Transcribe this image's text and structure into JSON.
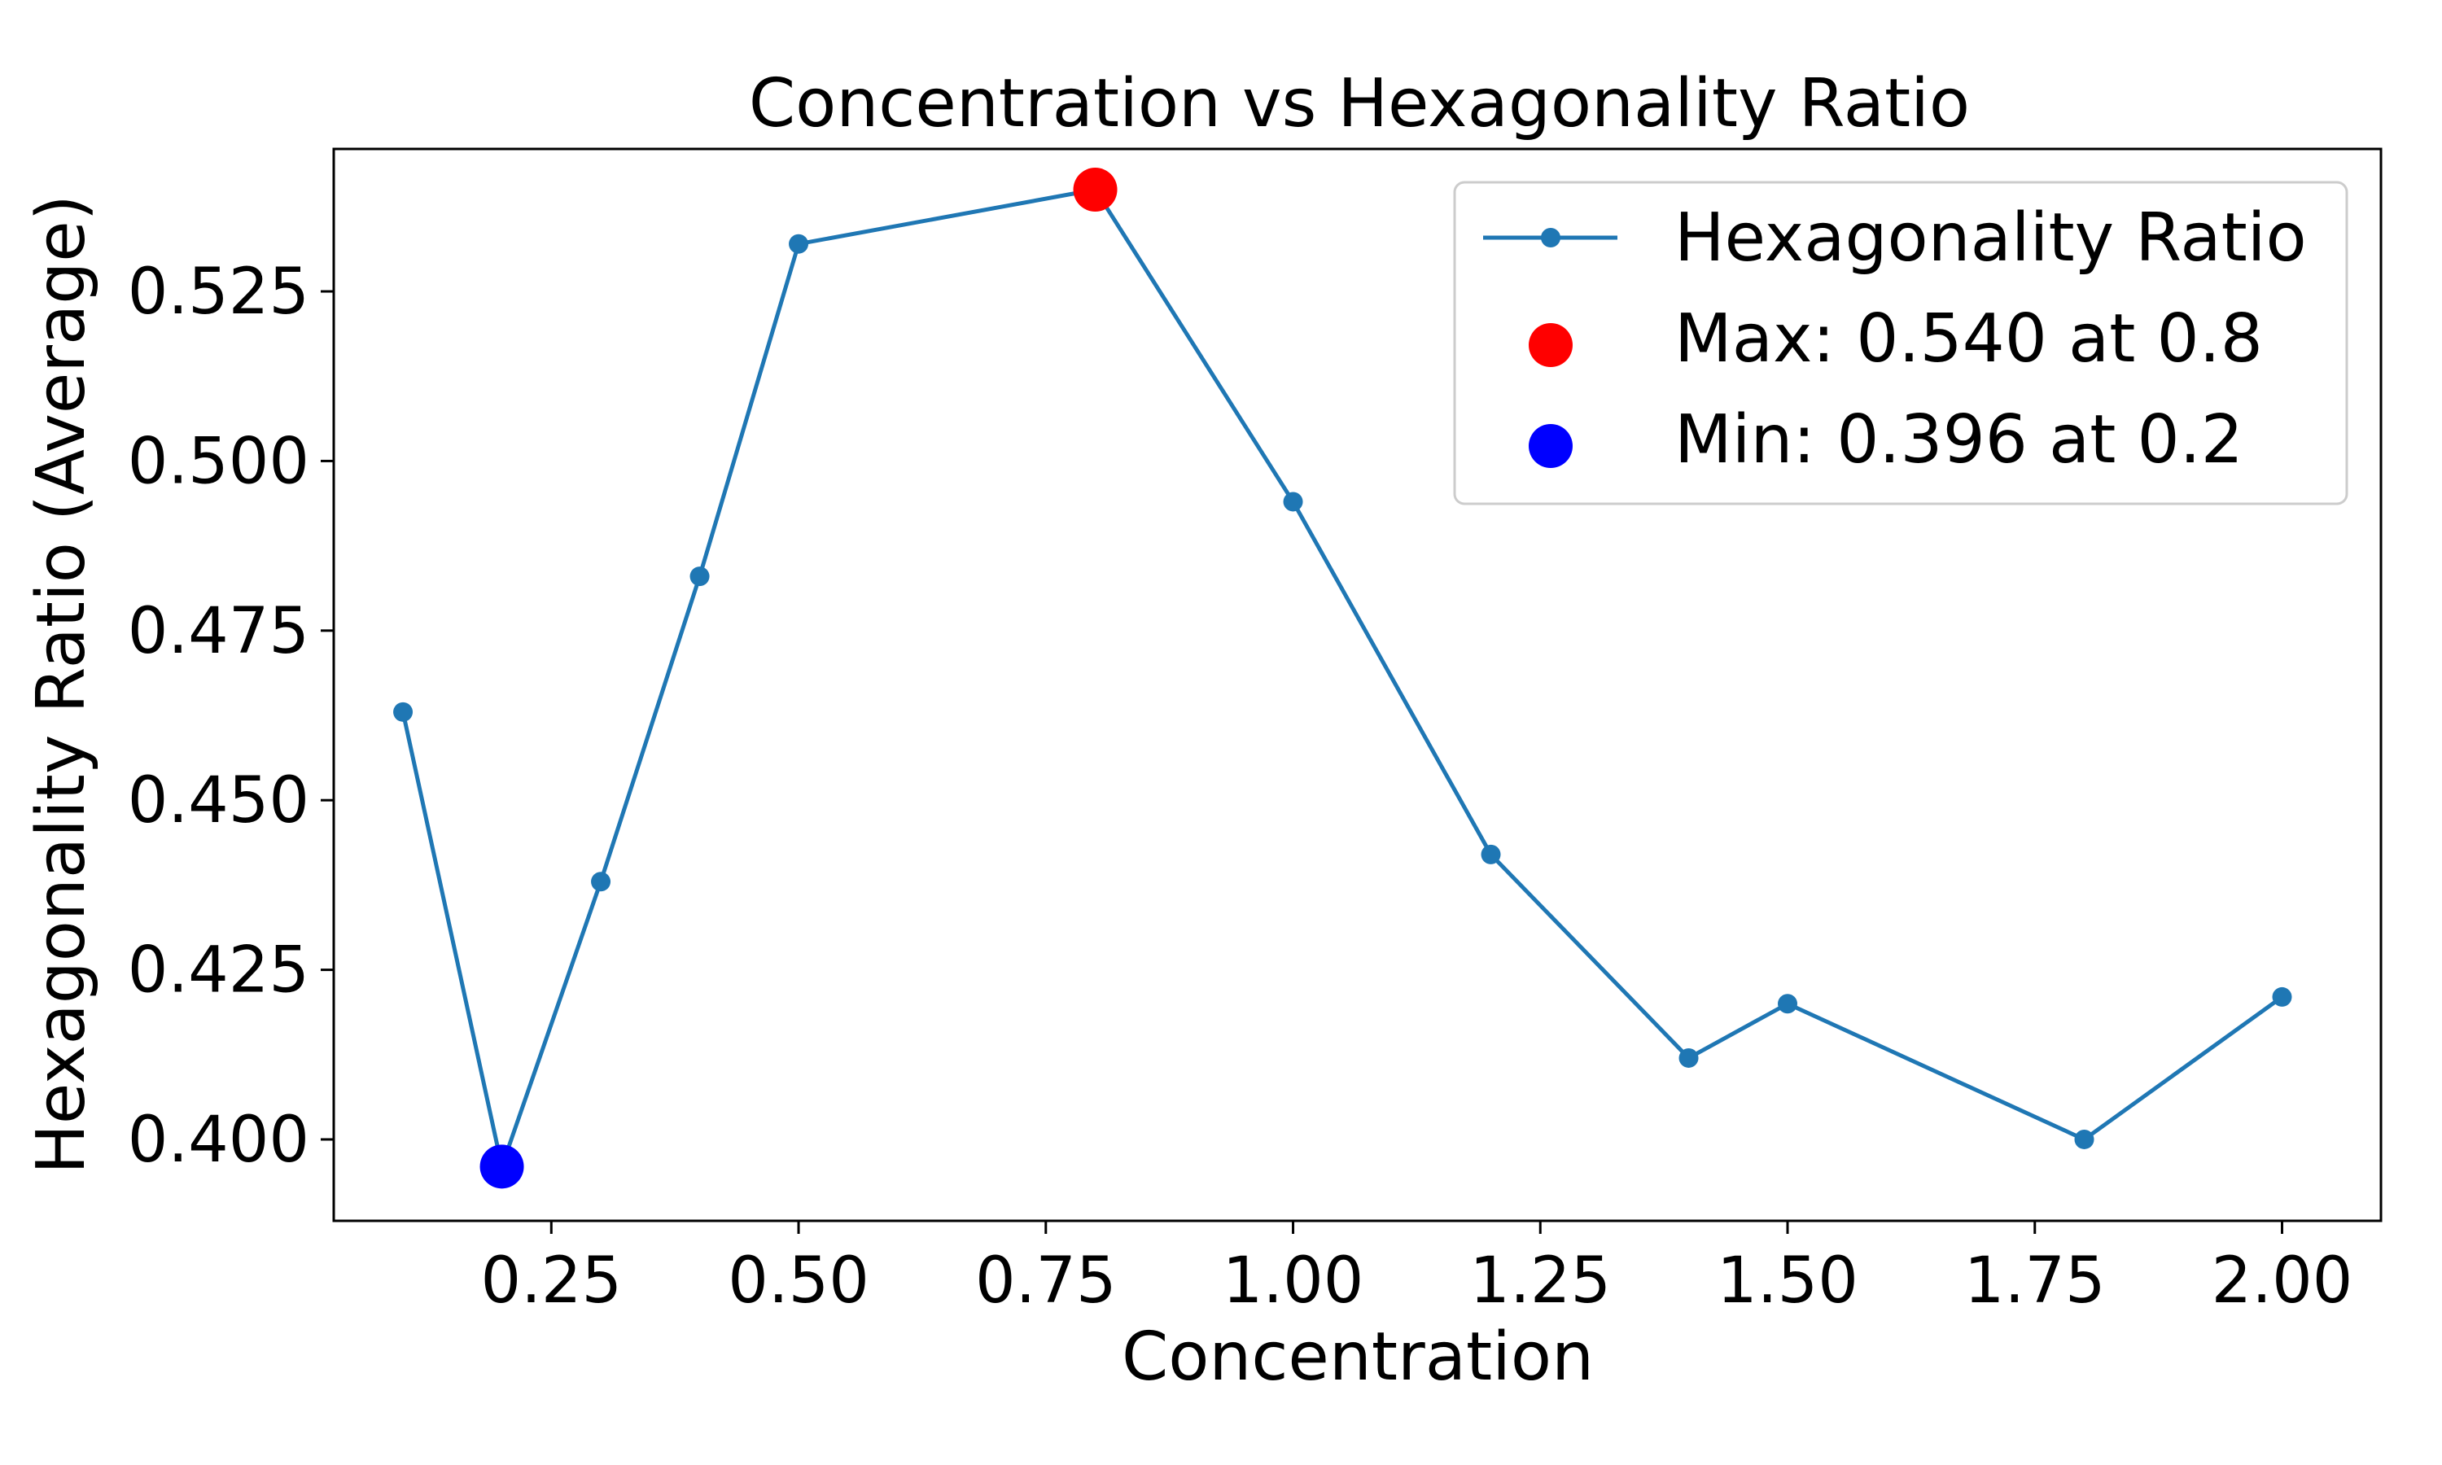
{
  "chart_data": {
    "type": "line",
    "title": "Concentration vs Hexagonality Ratio",
    "xlabel": "Concentration",
    "ylabel": "Hexagonality Ratio (Average)",
    "xlim": [
      0.03,
      2.1
    ],
    "ylim": [
      0.388,
      0.546
    ],
    "xticks": [
      "0.25",
      "0.50",
      "0.75",
      "1.00",
      "1.25",
      "1.50",
      "1.75",
      "2.00"
    ],
    "xtick_values": [
      0.25,
      0.5,
      0.75,
      1.0,
      1.25,
      1.5,
      1.75,
      2.0
    ],
    "yticks": [
      "0.400",
      "0.425",
      "0.450",
      "0.475",
      "0.500",
      "0.525"
    ],
    "ytick_values": [
      0.4,
      0.425,
      0.45,
      0.475,
      0.5,
      0.525
    ],
    "grid": false,
    "legend_position": "top-right",
    "series": [
      {
        "name": "Hexagonality Ratio",
        "color": "#1f77b4",
        "x": [
          0.1,
          0.2,
          0.3,
          0.4,
          0.5,
          0.8,
          1.0,
          1.2,
          1.4,
          1.5,
          1.8,
          2.0
        ],
        "y": [
          0.463,
          0.396,
          0.438,
          0.483,
          0.532,
          0.54,
          0.494,
          0.442,
          0.412,
          0.42,
          0.4,
          0.421
        ]
      }
    ],
    "annotations": [
      {
        "label": "Max: 0.540 at 0.8",
        "x": 0.8,
        "y": 0.54,
        "color": "#ff0000"
      },
      {
        "label": "Min: 0.396 at 0.2",
        "x": 0.2,
        "y": 0.396,
        "color": "#0000ff"
      }
    ]
  }
}
